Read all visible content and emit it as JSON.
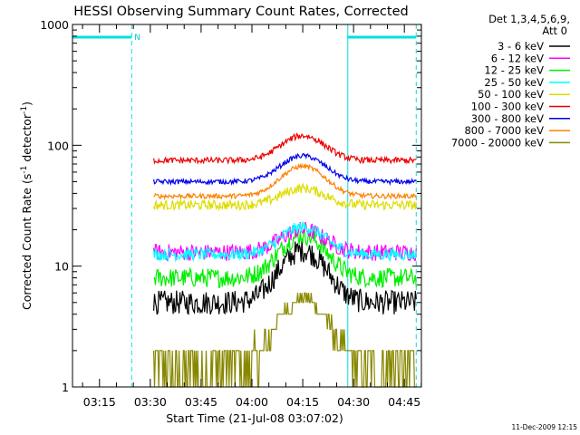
{
  "chart_data": {
    "type": "line",
    "title": "HESSI Observing Summary Count Rates, Corrected",
    "xlabel": "Start Time (21-Jul-08 03:07:02)",
    "ylabel_main": "Corrected Count Rate (s",
    "ylabel_sup1": "-1",
    "ylabel_mid": " detector",
    "ylabel_sup2": "-1",
    "ylabel_end": ")",
    "yscale": "log",
    "ylim": [
      1,
      1000
    ],
    "xlim_minutes": [
      187.03,
      290.03
    ],
    "x_ticks": [
      {
        "label": "03:15",
        "minute": 195
      },
      {
        "label": "03:30",
        "minute": 210
      },
      {
        "label": "03:45",
        "minute": 225
      },
      {
        "label": "04:00",
        "minute": 240
      },
      {
        "label": "04:15",
        "minute": 255
      },
      {
        "label": "04:30",
        "minute": 270
      },
      {
        "label": "04:45",
        "minute": 285
      }
    ],
    "y_ticks": [
      {
        "label": "1",
        "value": 1
      },
      {
        "label": "10",
        "value": 10
      },
      {
        "label": "100",
        "value": 100
      },
      {
        "label": "1000",
        "value": 1000
      }
    ],
    "legend_header": [
      "Det 1,3,4,5,6,9,",
      "Att 0"
    ],
    "legend_position": "top-right, outside plot",
    "night_marker_label": "N",
    "night_intervals_minutes": [
      [
        187.03,
        204.5
      ],
      [
        268.3,
        288.5
      ]
    ],
    "night_boundaries_minutes": [
      204.5,
      268.3,
      288.5
    ],
    "data_start_minute": 211,
    "data_end_minute": 288.5,
    "flare_peak_minute": 255,
    "series": [
      {
        "name": "3 - 6 keV",
        "color": "#000000",
        "base": 5.0,
        "peak": 13.5,
        "noise": 0.1
      },
      {
        "name": "6 - 12 keV",
        "color": "#ff00ff",
        "base": 13.0,
        "peak": 20.0,
        "noise": 0.07
      },
      {
        "name": "12 - 25 keV",
        "color": "#00ee00",
        "base": 8.0,
        "peak": 18.0,
        "noise": 0.08
      },
      {
        "name": "25 - 50 keV",
        "color": "#00ffff",
        "base": 12.5,
        "peak": 21.0,
        "noise": 0.05
      },
      {
        "name": "50 - 100 keV",
        "color": "#dddd00",
        "base": 32.0,
        "peak": 44.0,
        "noise": 0.04
      },
      {
        "name": "100 - 300 keV",
        "color": "#ee0000",
        "base": 75.0,
        "peak": 120.0,
        "noise": 0.025
      },
      {
        "name": "300 - 800 keV",
        "color": "#0000ee",
        "base": 50.0,
        "peak": 82.0,
        "noise": 0.02
      },
      {
        "name": "800 - 7000 keV",
        "color": "#ff8000",
        "base": 38.0,
        "peak": 67.0,
        "noise": 0.02
      },
      {
        "name": "7000 - 20000 keV",
        "color": "#888800",
        "base": 1.5,
        "peak": 5.5,
        "noise": 0.0
      }
    ],
    "footer_timestamp": "11-Dec-2009 12:15"
  }
}
